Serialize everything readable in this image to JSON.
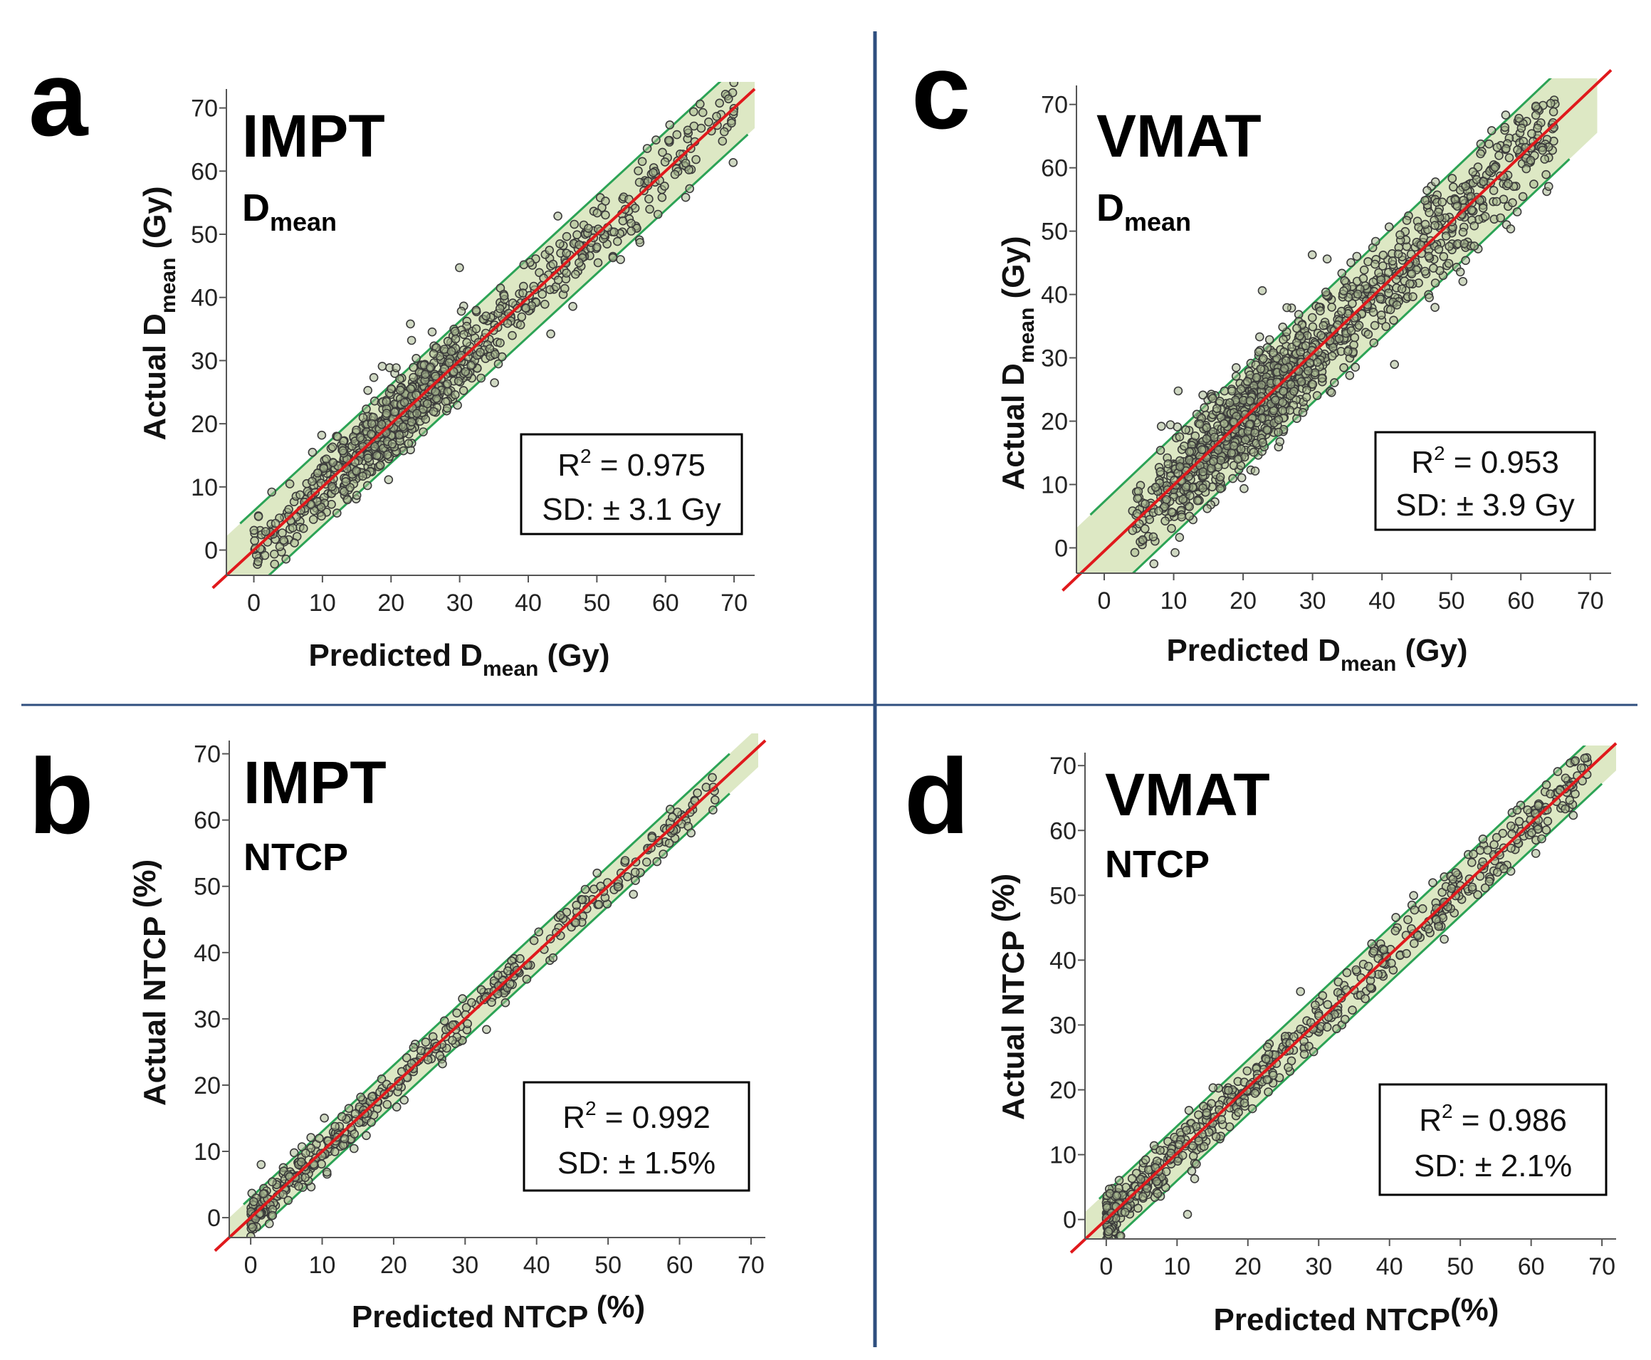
{
  "colors": {
    "band_fill": "#dde8c4",
    "bound_line": "#2ca356",
    "fit_line": "#e0191c",
    "point_stroke": "#3b3b3b",
    "point_fill": "#a8b890",
    "divider": "#2f4f7f"
  },
  "chart_data": [
    {
      "id": "a",
      "type": "scatter",
      "panel_letter": "a",
      "title": "IMPT",
      "subtitle_main": "D",
      "subtitle_sub": "mean",
      "xlabel": {
        "prefix": "Predicted D",
        "sub": "mean",
        "suffix": " (Gy)"
      },
      "ylabel": {
        "prefix": "Actual D",
        "sub": "mean",
        "suffix": " (Gy)"
      },
      "xlim": [
        -4,
        73
      ],
      "ylim": [
        -4,
        73
      ],
      "xticks": [
        0,
        10,
        20,
        30,
        40,
        50,
        60,
        70
      ],
      "yticks": [
        0,
        10,
        20,
        30,
        40,
        50,
        60,
        70
      ],
      "stats": {
        "r2_prefix": "R",
        "r2_sup": "2",
        "r2_value": " = 0.975",
        "sd": "SD: ± 3.1 Gy"
      },
      "fit": {
        "slope": 1,
        "intercept": 0
      },
      "band_offset": 6.2,
      "n_points": 900,
      "dist": {
        "min": 0,
        "max": 70,
        "mode": "mixed",
        "sd": 3.1
      }
    },
    {
      "id": "b",
      "type": "scatter",
      "panel_letter": "b",
      "title": "IMPT",
      "subtitle_main": "NTCP",
      "subtitle_sub": "",
      "xlabel": {
        "prefix": "Predicted NTCP",
        "sub": "",
        "suffix": " (%)"
      },
      "ylabel": {
        "prefix": "Actual NTCP ",
        "sub": "",
        "suffix": "(%)"
      },
      "xlim": [
        -3,
        72
      ],
      "ylim": [
        -3,
        72
      ],
      "xticks": [
        0,
        10,
        20,
        30,
        40,
        50,
        60,
        70
      ],
      "yticks": [
        0,
        10,
        20,
        30,
        40,
        50,
        60,
        70
      ],
      "stats": {
        "r2_prefix": "R",
        "r2_sup": "2",
        "r2_value": " = 0.992",
        "sd": "SD: ± 1.5%"
      },
      "fit": {
        "slope": 1,
        "intercept": 0
      },
      "band_offset": 3.0,
      "n_points": 420,
      "dist": {
        "min": 0,
        "max": 65,
        "mode": "skew-low",
        "sd": 1.5
      }
    },
    {
      "id": "c",
      "type": "scatter",
      "panel_letter": "c",
      "title": "VMAT",
      "subtitle_main": "D",
      "subtitle_sub": "mean",
      "xlabel": {
        "prefix": "Predicted D",
        "sub": "mean",
        "suffix": " (Gy)"
      },
      "ylabel": {
        "prefix": "Actual D",
        "sub": "mean",
        "suffix": " (Gy)"
      },
      "xlim": [
        -4,
        73
      ],
      "ylim": [
        -4,
        73
      ],
      "xticks": [
        0,
        10,
        20,
        30,
        40,
        50,
        60,
        70
      ],
      "yticks": [
        0,
        10,
        20,
        30,
        40,
        50,
        60,
        70
      ],
      "stats": {
        "r2_prefix": "R",
        "r2_sup": "2",
        "r2_value": " = 0.953",
        "sd": "SD: ± 3.9 Gy"
      },
      "fit": {
        "slope": 1.04,
        "intercept": -0.5
      },
      "band_offset": 7.8,
      "n_points": 1300,
      "dist": {
        "min": 4,
        "max": 65,
        "mode": "mixed",
        "sd": 3.9
      }
    },
    {
      "id": "d",
      "type": "scatter",
      "panel_letter": "d",
      "title": "VMAT",
      "subtitle_main": "NTCP",
      "subtitle_sub": "",
      "xlabel": {
        "prefix": "Predicted NTCP",
        "sub": "",
        "suffix": "(%)"
      },
      "ylabel": {
        "prefix": "Actual NTCP  ",
        "sub": "",
        "suffix": "(%)"
      },
      "xlim": [
        -3,
        72
      ],
      "ylim": [
        -3,
        72
      ],
      "xticks": [
        0,
        10,
        20,
        30,
        40,
        50,
        60,
        70
      ],
      "yticks": [
        0,
        10,
        20,
        30,
        40,
        50,
        60,
        70
      ],
      "stats": {
        "r2_prefix": "R",
        "r2_sup": "2",
        "r2_value": " = 0.986",
        "sd": "SD: ± 2.1%"
      },
      "fit": {
        "slope": 1.02,
        "intercept": 0
      },
      "band_offset": 4.2,
      "n_points": 600,
      "dist": {
        "min": 0,
        "max": 68,
        "mode": "skew-low",
        "sd": 2.1
      }
    }
  ]
}
